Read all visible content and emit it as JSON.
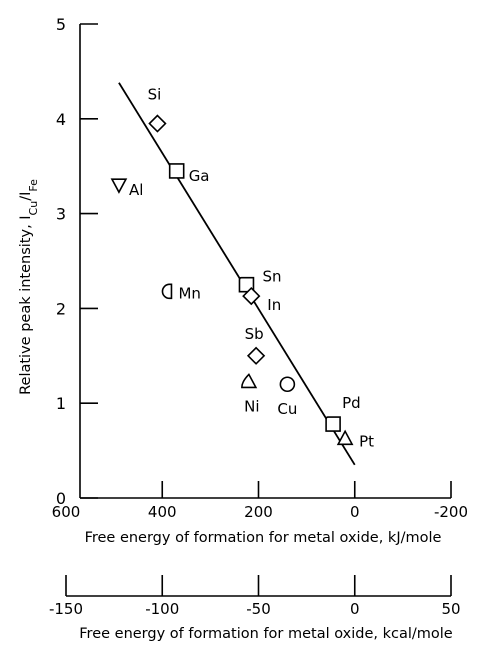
{
  "chart_data": {
    "type": "scatter",
    "ylabel": "Relative peak intensity, I",
    "ylabel_sub_cu": "Cu",
    "ylabel_slash": "/I",
    "ylabel_sub_fe": "Fe",
    "xlabel": "Free energy of formation for metal oxide, kJ/mole",
    "xlabel2": "Free energy of formation for metal oxide, kcal/mole",
    "xlim": [
      600,
      -200
    ],
    "ylim": [
      0,
      5
    ],
    "x2lim": [
      -150,
      50
    ],
    "xticks": [
      "600",
      "400",
      "200",
      "0",
      "-200"
    ],
    "x2ticks": [
      "-150",
      "-100",
      "-50",
      "0",
      "50"
    ],
    "yticks": [
      "0",
      "1",
      "2",
      "3",
      "4",
      "5"
    ],
    "points": [
      {
        "label": "Si",
        "x": 410,
        "y": 3.95,
        "marker": "diamond"
      },
      {
        "label": "Ga",
        "x": 370,
        "y": 3.45,
        "marker": "square"
      },
      {
        "label": "Al",
        "x": 490,
        "y": 3.3,
        "marker": "triangle-down"
      },
      {
        "label": "Mn",
        "x": 385,
        "y": 2.18,
        "marker": "half-circle-left"
      },
      {
        "label": "Sn",
        "x": 225,
        "y": 2.25,
        "marker": "half-square-left"
      },
      {
        "label": "In",
        "x": 215,
        "y": 2.13,
        "marker": "diamond"
      },
      {
        "label": "Sb",
        "x": 205,
        "y": 1.5,
        "marker": "diamond"
      },
      {
        "label": "Ni",
        "x": 220,
        "y": 1.23,
        "marker": "half-triangle"
      },
      {
        "label": "Cu",
        "x": 140,
        "y": 1.2,
        "marker": "circle"
      },
      {
        "label": "Pd",
        "x": 45,
        "y": 0.78,
        "marker": "half-square-left"
      },
      {
        "label": "Pt",
        "x": 20,
        "y": 0.63,
        "marker": "triangle-up"
      }
    ],
    "fit_line": {
      "x": [
        490,
        0
      ],
      "y": [
        4.38,
        0.35
      ]
    },
    "grid": false
  }
}
